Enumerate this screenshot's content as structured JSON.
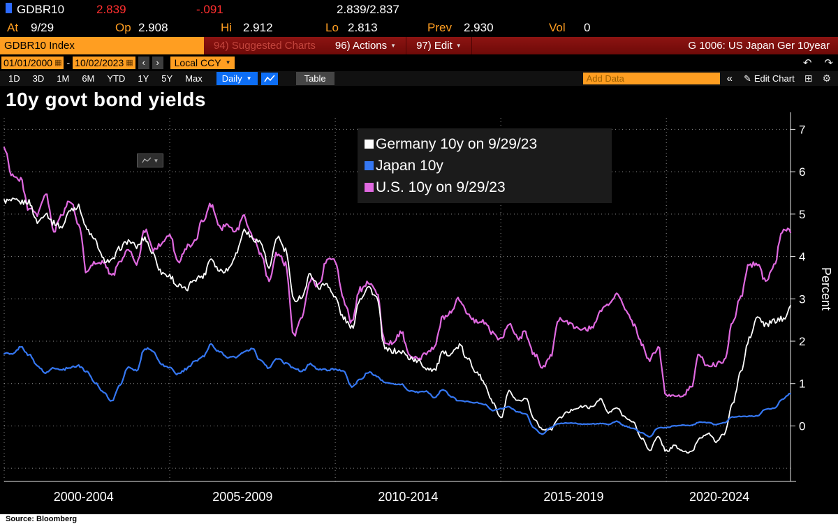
{
  "quote": {
    "ticker": "GDBR10",
    "last": "2.839",
    "change": "-.091",
    "bid_ask": "2.839/2.837",
    "at_label": "At",
    "at_value": "9/29",
    "op_label": "Op",
    "op_value": "2.908",
    "hi_label": "Hi",
    "hi_value": "2.912",
    "lo_label": "Lo",
    "lo_value": "2.813",
    "prev_label": "Prev",
    "prev_value": "2.930",
    "vol_label": "Vol",
    "vol_value": "0"
  },
  "menu": {
    "security": "GDBR10 Index",
    "suggested": "94) Suggested Charts",
    "actions": "96) Actions",
    "edit": "97) Edit",
    "screen_title": "G 1006: US Japan Ger 10year"
  },
  "controls": {
    "date_from": "01/01/2000",
    "dash": "-",
    "date_to": "10/02/2023",
    "currency": "Local CCY"
  },
  "toolbar": {
    "periods": [
      "1D",
      "3D",
      "1M",
      "6M",
      "YTD",
      "1Y",
      "5Y",
      "Max"
    ],
    "frequency": "Daily",
    "table_label": "Table",
    "add_data_placeholder": "Add Data",
    "edit_chart_label": "Edit Chart"
  },
  "icons": {
    "prev": "‹",
    "next": "›",
    "undo": "↶",
    "redo": "↷",
    "collapse": "«",
    "pencil": "✎",
    "grid": "⊞",
    "gear": "⚙",
    "calendar": "▦",
    "caret_down": "▼"
  },
  "chart_data": {
    "type": "line",
    "title": "10y govt bond yields",
    "ylabel": "Percent",
    "legend_position": "upper-center",
    "grid": true,
    "x_range": [
      2000.0,
      2023.75
    ],
    "ylim": [
      -1.31,
      7.27
    ],
    "y_ticks": [
      0,
      1,
      2,
      3,
      4,
      5,
      6,
      7
    ],
    "y_gridlines": [
      -1,
      0,
      1,
      2,
      3,
      4,
      5,
      6,
      7
    ],
    "x_gridlines": [
      2000,
      2005,
      2010,
      2015,
      2020
    ],
    "categories": [
      "2000-2004",
      "2005-2009",
      "2010-2014",
      "2015-2019",
      "2020-2024"
    ],
    "x_label_positions": [
      2002.4,
      2007.2,
      2012.2,
      2017.2,
      2021.6
    ],
    "draw_order": [
      2,
      0,
      1
    ],
    "series": [
      {
        "key": "germany",
        "name": "Germany 10y on 9/29/23",
        "color": "#ffffff",
        "width": 1.8,
        "noise": 0.13,
        "x_start": 2000.0,
        "x_step_years": 0.25,
        "y": [
          5.3,
          5.25,
          5.2,
          5.25,
          4.85,
          5.1,
          4.85,
          4.7,
          5.05,
          5.1,
          4.6,
          4.4,
          4.0,
          3.95,
          4.2,
          4.3,
          4.15,
          4.4,
          4.1,
          3.7,
          3.6,
          3.3,
          3.15,
          3.4,
          3.5,
          4.0,
          3.75,
          3.75,
          4.05,
          4.55,
          4.35,
          4.3,
          3.75,
          4.55,
          4.2,
          2.95,
          3.0,
          3.5,
          3.25,
          3.4,
          3.1,
          2.6,
          2.3,
          2.95,
          3.2,
          3.0,
          1.85,
          1.85,
          1.8,
          1.6,
          1.45,
          1.3,
          1.3,
          1.75,
          1.8,
          1.95,
          1.55,
          1.25,
          0.95,
          0.55,
          0.2,
          0.85,
          0.6,
          0.65,
          0.15,
          -0.1,
          -0.1,
          0.2,
          0.35,
          0.45,
          0.45,
          0.4,
          0.6,
          0.3,
          0.45,
          0.25,
          0.1,
          -0.3,
          -0.6,
          -0.3,
          -0.6,
          -0.45,
          -0.55,
          -0.6,
          -0.3,
          -0.2,
          -0.4,
          -0.2,
          0.55,
          1.35,
          2.1,
          2.55,
          2.3,
          2.4,
          2.5,
          2.84
        ]
      },
      {
        "key": "japan",
        "name": "Japan 10y",
        "color": "#3577f2",
        "width": 2.2,
        "noise": 0.05,
        "x_start": 2000.0,
        "x_step_years": 0.25,
        "y": [
          1.75,
          1.7,
          1.85,
          1.65,
          1.4,
          1.25,
          1.4,
          1.35,
          1.4,
          1.4,
          1.25,
          1.0,
          0.8,
          0.6,
          1.0,
          1.4,
          1.3,
          1.8,
          1.75,
          1.45,
          1.4,
          1.25,
          1.35,
          1.5,
          1.6,
          1.9,
          1.75,
          1.65,
          1.65,
          1.75,
          1.8,
          1.5,
          1.35,
          1.6,
          1.5,
          1.4,
          1.3,
          1.45,
          1.3,
          1.3,
          1.35,
          1.3,
          0.95,
          1.1,
          1.25,
          1.15,
          1.0,
          1.0,
          1.0,
          0.85,
          0.8,
          0.8,
          0.65,
          0.85,
          0.7,
          0.6,
          0.6,
          0.55,
          0.5,
          0.35,
          0.4,
          0.45,
          0.35,
          0.3,
          -0.05,
          -0.2,
          -0.05,
          0.05,
          0.07,
          0.07,
          0.05,
          0.05,
          0.05,
          0.03,
          0.1,
          0.0,
          -0.05,
          -0.15,
          -0.25,
          -0.05,
          -0.05,
          0.0,
          0.02,
          0.02,
          0.1,
          0.08,
          0.03,
          0.07,
          0.2,
          0.23,
          0.24,
          0.25,
          0.4,
          0.4,
          0.6,
          0.76
        ]
      },
      {
        "key": "us",
        "name": "U.S. 10y on 9/29/23",
        "color": "#e069e0",
        "width": 2.2,
        "noise": 0.13,
        "x_start": 2000.0,
        "x_step_years": 0.25,
        "y": [
          6.6,
          6.0,
          5.85,
          5.1,
          4.9,
          5.4,
          4.6,
          5.05,
          5.4,
          4.8,
          3.6,
          3.8,
          3.8,
          3.5,
          3.95,
          4.25,
          3.85,
          4.6,
          4.1,
          4.2,
          4.5,
          3.9,
          4.3,
          4.4,
          4.85,
          5.15,
          4.6,
          4.7,
          4.65,
          5.0,
          4.55,
          4.0,
          3.4,
          4.0,
          3.8,
          2.2,
          2.7,
          3.5,
          3.3,
          3.85,
          3.85,
          2.95,
          2.5,
          3.3,
          3.45,
          3.15,
          1.9,
          1.9,
          2.2,
          1.65,
          1.65,
          1.75,
          1.85,
          2.5,
          2.6,
          3.0,
          2.7,
          2.55,
          2.5,
          2.2,
          1.95,
          2.35,
          2.05,
          2.25,
          1.8,
          1.45,
          1.6,
          2.45,
          2.4,
          2.3,
          2.35,
          2.4,
          2.75,
          2.85,
          3.05,
          2.7,
          2.4,
          2.0,
          1.65,
          1.9,
          0.7,
          0.65,
          0.68,
          0.92,
          1.75,
          1.45,
          1.5,
          1.5,
          2.35,
          3.0,
          3.8,
          3.9,
          3.5,
          3.8,
          4.55,
          4.57
        ]
      }
    ]
  },
  "source": "Source: Bloomberg"
}
